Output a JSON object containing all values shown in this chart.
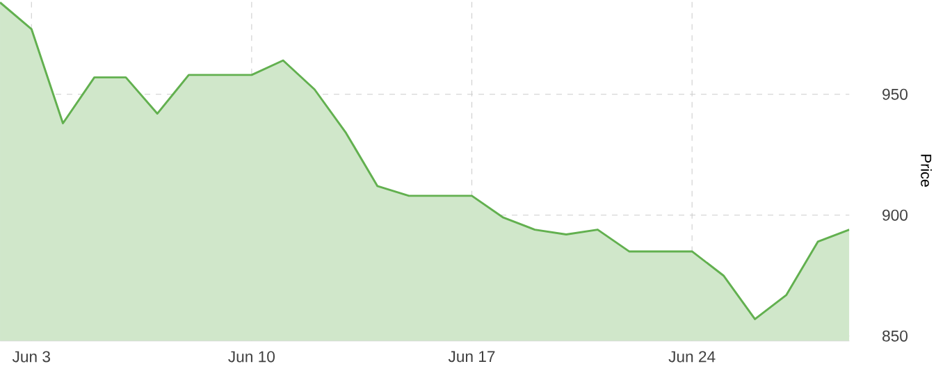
{
  "chart_data": {
    "type": "area",
    "ylabel": "Price",
    "color": "#62b04f",
    "x": [
      "--06-02",
      "--06-03",
      "--06-04",
      "--06-05",
      "--06-06",
      "--06-07",
      "--06-08",
      "--06-09",
      "--06-10",
      "--06-11",
      "--06-12",
      "--06-13",
      "--06-14",
      "--06-15",
      "--06-16",
      "--06-17",
      "--06-18",
      "--06-19",
      "--06-20",
      "--06-21",
      "--06-22",
      "--06-23",
      "--06-24",
      "--06-25",
      "--06-26",
      "--06-27",
      "--06-28",
      "--06-29"
    ],
    "values": [
      988,
      977,
      938,
      957,
      957,
      942,
      958,
      958,
      958,
      964,
      952,
      934,
      912,
      908,
      908,
      908,
      899,
      894,
      892,
      894,
      885,
      885,
      885,
      875,
      857,
      867,
      889,
      894
    ],
    "xlim": [
      "--06-02",
      "--06-29"
    ],
    "ylim": [
      848,
      989
    ],
    "xticks": [
      {
        "value": "--06-03",
        "label": "Jun 3"
      },
      {
        "value": "--06-10",
        "label": "Jun 10"
      },
      {
        "value": "--06-17",
        "label": "Jun 17"
      },
      {
        "value": "--06-24",
        "label": "Jun 24"
      }
    ],
    "yticks": [
      850,
      900,
      950
    ],
    "grid": true
  }
}
